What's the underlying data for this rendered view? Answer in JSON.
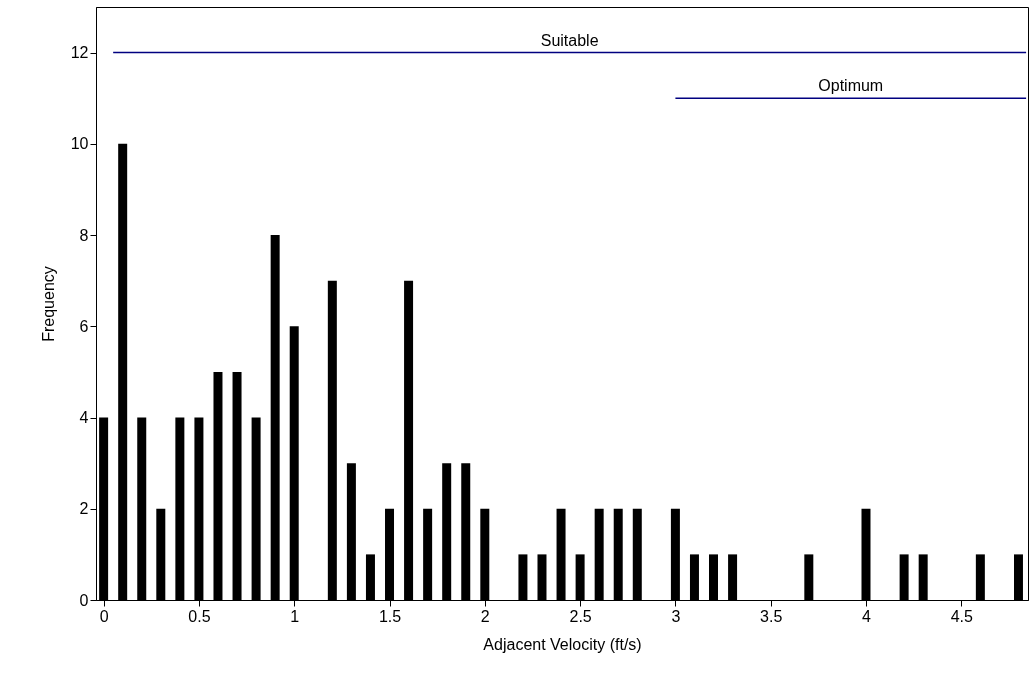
{
  "chart_data": {
    "type": "bar",
    "xlabel": "Adjacent Velocity (ft/s)",
    "ylabel": "Frequency",
    "x": [
      0,
      0.1,
      0.2,
      0.3,
      0.4,
      0.5,
      0.6,
      0.7,
      0.8,
      0.9,
      1.0,
      1.1,
      1.2,
      1.3,
      1.4,
      1.5,
      1.6,
      1.7,
      1.8,
      1.9,
      2.0,
      2.1,
      2.2,
      2.3,
      2.4,
      2.5,
      2.6,
      2.7,
      2.8,
      2.9,
      3.0,
      3.1,
      3.2,
      3.3,
      3.4,
      3.5,
      3.6,
      3.7,
      3.8,
      3.9,
      4.0,
      4.1,
      4.2,
      4.3,
      4.4,
      4.5,
      4.6,
      4.7,
      4.8
    ],
    "series": [
      {
        "color": "#000000",
        "values": [
          4,
          10,
          4,
          2,
          4,
          4,
          5,
          5,
          4,
          8,
          6,
          0,
          7,
          3,
          1,
          2,
          7,
          2,
          3,
          3,
          2,
          0,
          1,
          1,
          2,
          1,
          2,
          2,
          2,
          0,
          2,
          1,
          1,
          1,
          0,
          0,
          0,
          1,
          0,
          0,
          2,
          0,
          1,
          1,
          0,
          0,
          1,
          0,
          1
        ]
      },
      {
        "type": "line",
        "name": "Suitable",
        "color": "#000080",
        "x": [
          0.05,
          4.84
        ],
        "values": [
          12,
          12
        ]
      },
      {
        "type": "line",
        "name": "Optimum",
        "color": "#000080",
        "x": [
          3.0,
          4.84
        ],
        "values": [
          11,
          11
        ]
      }
    ],
    "xlim": [
      -0.04,
      4.85
    ],
    "xticks": [
      0,
      0.5,
      1,
      1.5,
      2,
      2.5,
      3,
      3.5,
      4,
      4.5
    ],
    "ylim": [
      0,
      13
    ],
    "yticks": [
      0,
      2,
      4,
      6,
      8,
      10,
      12
    ],
    "grid": false
  }
}
